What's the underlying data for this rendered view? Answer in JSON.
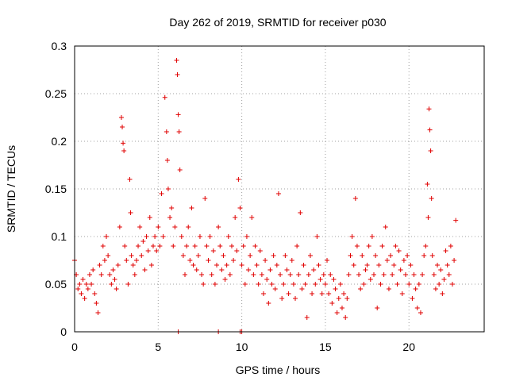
{
  "chart_data": {
    "type": "scatter",
    "title": "Day 262 of 2019, SRMTID for receiver p030",
    "xlabel": "GPS time / hours",
    "ylabel": "SRMTID / TECUs",
    "xlim": [
      0,
      24.5
    ],
    "ylim": [
      0,
      0.3
    ],
    "x_ticks": [
      0,
      5,
      10,
      15,
      20
    ],
    "y_ticks": [
      0,
      0.05,
      0.1,
      0.15,
      0.2,
      0.25,
      0.3
    ],
    "x_tick_labels": [
      "0",
      "5",
      "10",
      "15",
      "20"
    ],
    "y_tick_labels": [
      "0",
      "0.05",
      "0.1",
      "0.15",
      "0.2",
      "0.25",
      "0.3"
    ],
    "grid": true,
    "marker": "+",
    "marker_color": "#e00000",
    "series": [
      {
        "name": "SRMTID",
        "points": [
          [
            0.0,
            0.075
          ],
          [
            0.1,
            0.06
          ],
          [
            0.2,
            0.045
          ],
          [
            0.3,
            0.05
          ],
          [
            0.4,
            0.04
          ],
          [
            0.5,
            0.055
          ],
          [
            0.6,
            0.035
          ],
          [
            0.7,
            0.05
          ],
          [
            0.8,
            0.045
          ],
          [
            0.9,
            0.06
          ],
          [
            1.0,
            0.05
          ],
          [
            1.1,
            0.065
          ],
          [
            1.2,
            0.04
          ],
          [
            1.3,
            0.03
          ],
          [
            1.4,
            0.02
          ],
          [
            1.5,
            0.07
          ],
          [
            1.6,
            0.06
          ],
          [
            1.7,
            0.09
          ],
          [
            1.8,
            0.075
          ],
          [
            1.9,
            0.1
          ],
          [
            2.0,
            0.08
          ],
          [
            2.1,
            0.06
          ],
          [
            2.2,
            0.05
          ],
          [
            2.3,
            0.065
          ],
          [
            2.4,
            0.055
          ],
          [
            2.5,
            0.045
          ],
          [
            2.6,
            0.07
          ],
          [
            2.7,
            0.11
          ],
          [
            2.8,
            0.225
          ],
          [
            2.85,
            0.215
          ],
          [
            2.9,
            0.198
          ],
          [
            2.95,
            0.19
          ],
          [
            3.0,
            0.09
          ],
          [
            3.1,
            0.075
          ],
          [
            3.2,
            0.05
          ],
          [
            3.3,
            0.16
          ],
          [
            3.35,
            0.125
          ],
          [
            3.4,
            0.08
          ],
          [
            3.5,
            0.07
          ],
          [
            3.6,
            0.06
          ],
          [
            3.7,
            0.075
          ],
          [
            3.8,
            0.09
          ],
          [
            3.9,
            0.11
          ],
          [
            4.0,
            0.08
          ],
          [
            4.1,
            0.095
          ],
          [
            4.2,
            0.065
          ],
          [
            4.3,
            0.1
          ],
          [
            4.4,
            0.085
          ],
          [
            4.5,
            0.12
          ],
          [
            4.6,
            0.07
          ],
          [
            4.7,
            0.09
          ],
          [
            4.8,
            0.1
          ],
          [
            4.9,
            0.085
          ],
          [
            5.0,
            0.11
          ],
          [
            5.1,
            0.09
          ],
          [
            5.2,
            0.145
          ],
          [
            5.3,
            0.1
          ],
          [
            5.4,
            0.246
          ],
          [
            5.5,
            0.21
          ],
          [
            5.55,
            0.18
          ],
          [
            5.6,
            0.15
          ],
          [
            5.7,
            0.12
          ],
          [
            5.8,
            0.13
          ],
          [
            5.9,
            0.09
          ],
          [
            6.0,
            0.11
          ],
          [
            6.1,
            0.285
          ],
          [
            6.15,
            0.27
          ],
          [
            6.2,
            0.228
          ],
          [
            6.25,
            0.21
          ],
          [
            6.3,
            0.17
          ],
          [
            6.4,
            0.1
          ],
          [
            6.5,
            0.08
          ],
          [
            6.6,
            0.06
          ],
          [
            6.7,
            0.09
          ],
          [
            6.8,
            0.11
          ],
          [
            6.9,
            0.075
          ],
          [
            7.0,
            0.13
          ],
          [
            7.1,
            0.07
          ],
          [
            7.2,
            0.09
          ],
          [
            7.3,
            0.065
          ],
          [
            7.4,
            0.08
          ],
          [
            7.5,
            0.1
          ],
          [
            7.6,
            0.06
          ],
          [
            7.7,
            0.05
          ],
          [
            7.8,
            0.14
          ],
          [
            7.9,
            0.09
          ],
          [
            8.0,
            0.075
          ],
          [
            8.1,
            0.1
          ],
          [
            8.2,
            0.06
          ],
          [
            8.3,
            0.085
          ],
          [
            8.4,
            0.05
          ],
          [
            8.5,
            0.07
          ],
          [
            8.6,
            0.11
          ],
          [
            8.7,
            0.09
          ],
          [
            8.8,
            0.065
          ],
          [
            8.9,
            0.08
          ],
          [
            9.0,
            0.055
          ],
          [
            9.1,
            0.07
          ],
          [
            9.2,
            0.1
          ],
          [
            9.3,
            0.06
          ],
          [
            9.4,
            0.09
          ],
          [
            9.5,
            0.075
          ],
          [
            9.6,
            0.12
          ],
          [
            9.7,
            0.085
          ],
          [
            9.8,
            0.16
          ],
          [
            9.9,
            0.13
          ],
          [
            10.0,
            0.07
          ],
          [
            10.1,
            0.09
          ],
          [
            10.2,
            0.05
          ],
          [
            10.3,
            0.1
          ],
          [
            10.4,
            0.065
          ],
          [
            10.5,
            0.08
          ],
          [
            10.6,
            0.12
          ],
          [
            10.7,
            0.06
          ],
          [
            10.8,
            0.09
          ],
          [
            10.9,
            0.07
          ],
          [
            11.0,
            0.05
          ],
          [
            11.1,
            0.085
          ],
          [
            11.2,
            0.06
          ],
          [
            11.3,
            0.04
          ],
          [
            11.4,
            0.075
          ],
          [
            11.5,
            0.055
          ],
          [
            11.6,
            0.03
          ],
          [
            11.7,
            0.065
          ],
          [
            11.8,
            0.05
          ],
          [
            11.9,
            0.08
          ],
          [
            12.0,
            0.045
          ],
          [
            12.1,
            0.07
          ],
          [
            12.2,
            0.145
          ],
          [
            12.3,
            0.06
          ],
          [
            12.4,
            0.035
          ],
          [
            12.5,
            0.05
          ],
          [
            12.6,
            0.08
          ],
          [
            12.7,
            0.065
          ],
          [
            12.8,
            0.04
          ],
          [
            12.9,
            0.06
          ],
          [
            13.0,
            0.075
          ],
          [
            13.1,
            0.05
          ],
          [
            13.2,
            0.035
          ],
          [
            13.3,
            0.09
          ],
          [
            13.4,
            0.06
          ],
          [
            13.5,
            0.125
          ],
          [
            13.6,
            0.045
          ],
          [
            13.7,
            0.07
          ],
          [
            13.8,
            0.05
          ],
          [
            13.9,
            0.015
          ],
          [
            14.0,
            0.06
          ],
          [
            14.1,
            0.08
          ],
          [
            14.2,
            0.04
          ],
          [
            14.3,
            0.065
          ],
          [
            14.4,
            0.05
          ],
          [
            14.5,
            0.1
          ],
          [
            14.6,
            0.07
          ],
          [
            14.7,
            0.055
          ],
          [
            14.8,
            0.04
          ],
          [
            14.9,
            0.06
          ],
          [
            15.0,
            0.05
          ],
          [
            15.1,
            0.075
          ],
          [
            15.2,
            0.04
          ],
          [
            15.3,
            0.06
          ],
          [
            15.4,
            0.03
          ],
          [
            15.5,
            0.055
          ],
          [
            15.6,
            0.045
          ],
          [
            15.7,
            0.02
          ],
          [
            15.8,
            0.035
          ],
          [
            15.9,
            0.05
          ],
          [
            16.0,
            0.025
          ],
          [
            16.1,
            0.04
          ],
          [
            16.2,
            0.015
          ],
          [
            16.3,
            0.035
          ],
          [
            16.4,
            0.06
          ],
          [
            16.5,
            0.08
          ],
          [
            16.6,
            0.1
          ],
          [
            16.7,
            0.07
          ],
          [
            16.8,
            0.14
          ],
          [
            16.9,
            0.09
          ],
          [
            17.0,
            0.06
          ],
          [
            17.1,
            0.045
          ],
          [
            17.2,
            0.08
          ],
          [
            17.3,
            0.05
          ],
          [
            17.4,
            0.065
          ],
          [
            17.5,
            0.07
          ],
          [
            17.6,
            0.09
          ],
          [
            17.7,
            0.055
          ],
          [
            17.8,
            0.1
          ],
          [
            17.9,
            0.06
          ],
          [
            18.0,
            0.08
          ],
          [
            18.1,
            0.025
          ],
          [
            18.2,
            0.07
          ],
          [
            18.3,
            0.05
          ],
          [
            18.4,
            0.09
          ],
          [
            18.5,
            0.06
          ],
          [
            18.6,
            0.11
          ],
          [
            18.7,
            0.075
          ],
          [
            18.8,
            0.045
          ],
          [
            18.9,
            0.08
          ],
          [
            19.0,
            0.06
          ],
          [
            19.1,
            0.07
          ],
          [
            19.2,
            0.09
          ],
          [
            19.3,
            0.05
          ],
          [
            19.4,
            0.085
          ],
          [
            19.5,
            0.065
          ],
          [
            19.6,
            0.04
          ],
          [
            19.7,
            0.075
          ],
          [
            19.8,
            0.06
          ],
          [
            19.9,
            0.08
          ],
          [
            20.0,
            0.05
          ],
          [
            20.1,
            0.07
          ],
          [
            20.2,
            0.035
          ],
          [
            20.3,
            0.06
          ],
          [
            20.4,
            0.045
          ],
          [
            20.5,
            0.025
          ],
          [
            20.6,
            0.05
          ],
          [
            20.7,
            0.02
          ],
          [
            20.8,
            0.06
          ],
          [
            20.9,
            0.08
          ],
          [
            21.0,
            0.09
          ],
          [
            21.1,
            0.155
          ],
          [
            21.15,
            0.12
          ],
          [
            21.2,
            0.234
          ],
          [
            21.25,
            0.212
          ],
          [
            21.3,
            0.19
          ],
          [
            21.35,
            0.14
          ],
          [
            21.4,
            0.08
          ],
          [
            21.5,
            0.06
          ],
          [
            21.6,
            0.045
          ],
          [
            21.7,
            0.07
          ],
          [
            21.8,
            0.05
          ],
          [
            21.9,
            0.065
          ],
          [
            22.0,
            0.04
          ],
          [
            22.1,
            0.055
          ],
          [
            22.2,
            0.085
          ],
          [
            22.3,
            0.07
          ],
          [
            22.4,
            0.06
          ],
          [
            22.5,
            0.09
          ],
          [
            22.6,
            0.05
          ],
          [
            22.7,
            0.075
          ],
          [
            22.8,
            0.117
          ],
          [
            6.2,
            0.0
          ],
          [
            8.6,
            0.0
          ],
          [
            9.9,
            0.0
          ],
          [
            10.0,
            0.0
          ]
        ]
      }
    ]
  }
}
